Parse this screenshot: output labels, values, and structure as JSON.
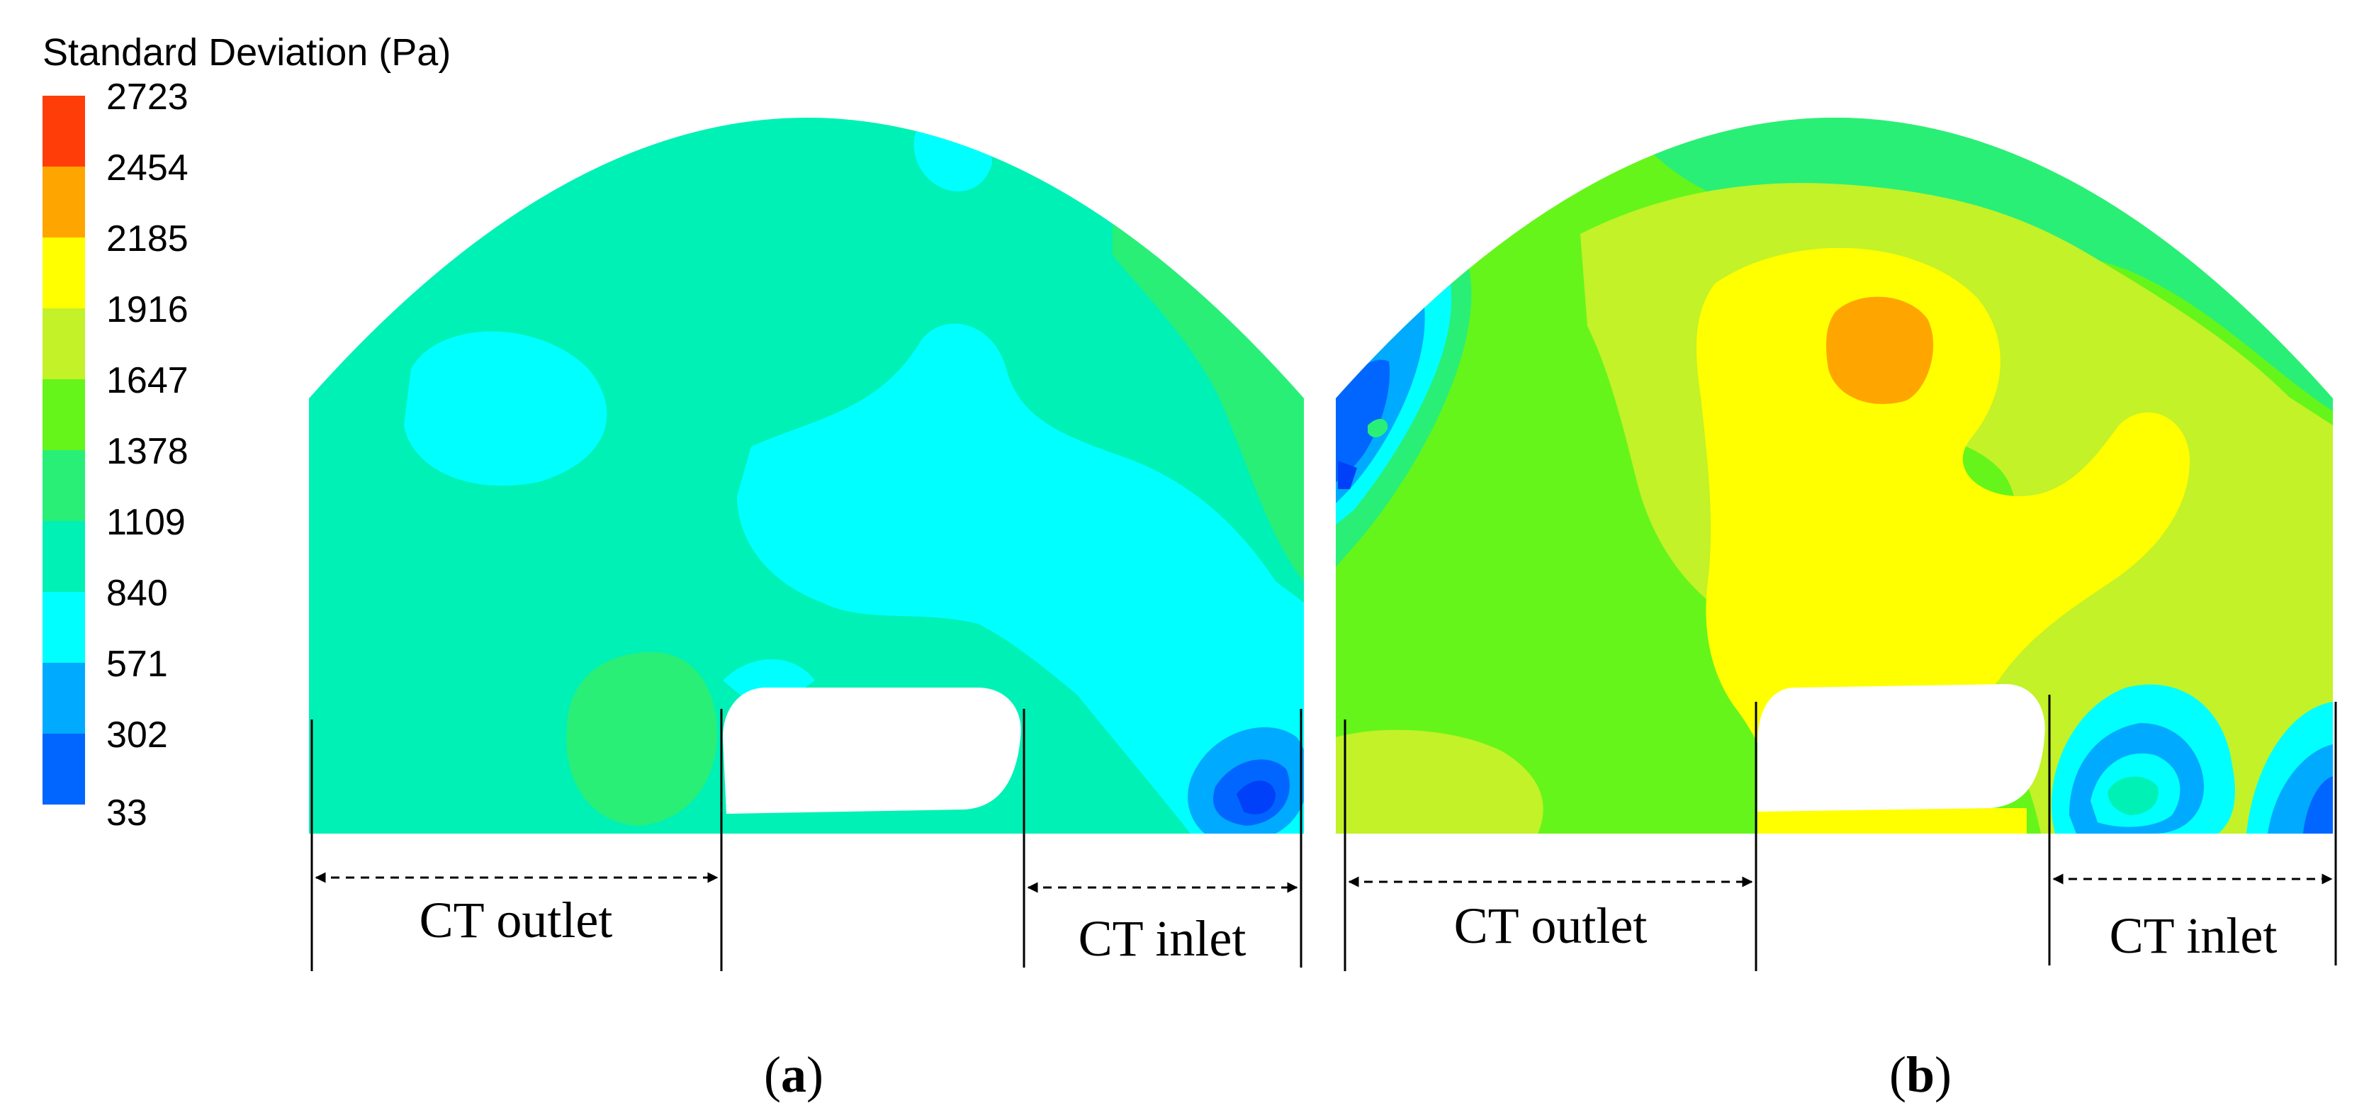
{
  "legend": {
    "title": "Standard Deviation (Pa)",
    "levels": [
      {
        "value": "2723",
        "color": "#ff3d08"
      },
      {
        "value": "2454",
        "color": "#ffa500"
      },
      {
        "value": "2185",
        "color": "#ffff00"
      },
      {
        "value": "1916",
        "color": "#c2f227"
      },
      {
        "value": "1647",
        "color": "#66f51a"
      },
      {
        "value": "1378",
        "color": "#29ef77"
      },
      {
        "value": "1109",
        "color": "#00f1b5"
      },
      {
        "value": "840",
        "color": "#00ffff"
      },
      {
        "value": "571",
        "color": "#00aaff"
      },
      {
        "value": "302",
        "color": "#0066ff"
      },
      {
        "value": "33",
        "color": "#0040f8"
      }
    ]
  },
  "panels": [
    {
      "label_open": "(",
      "label_letter": "a",
      "label_close": ")",
      "outlet_label": "CT outlet",
      "inlet_label": "CT inlet"
    },
    {
      "label_open": "(",
      "label_letter": "b",
      "label_close": ")",
      "outlet_label": "CT outlet",
      "inlet_label": "CT inlet"
    }
  ]
}
